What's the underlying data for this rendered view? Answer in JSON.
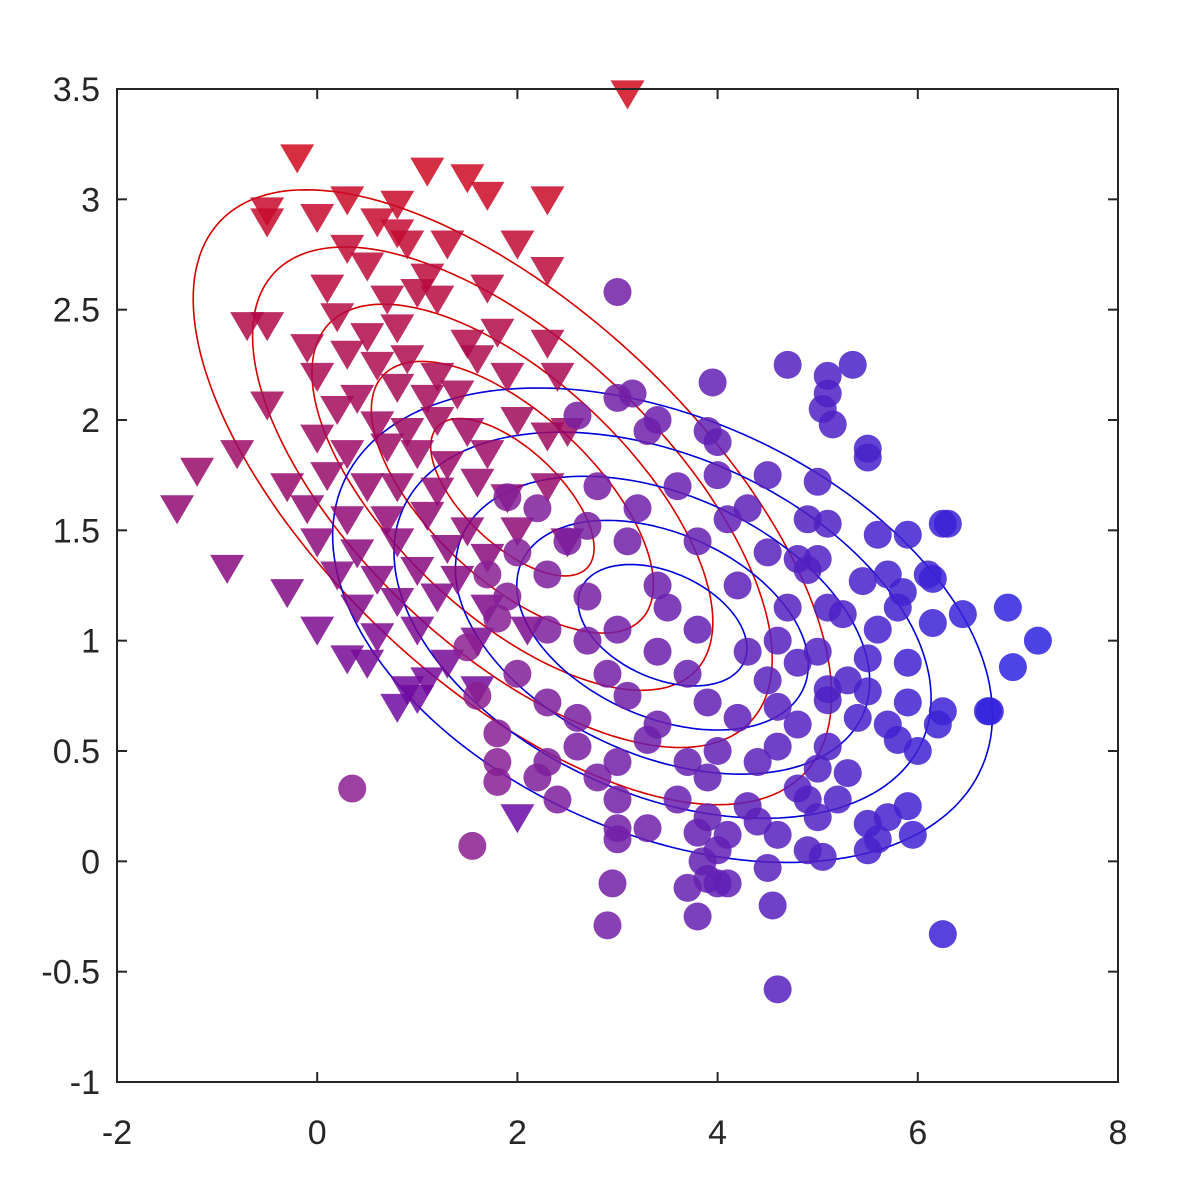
{
  "chart_data": {
    "type": "scatter",
    "title": "",
    "xlabel": "",
    "ylabel": "",
    "xlim": [
      -2,
      8
    ],
    "ylim": [
      -1,
      3.5
    ],
    "grid": false,
    "legend": "none",
    "x_ticks": [
      -2,
      0,
      2,
      4,
      6,
      8
    ],
    "x_tick_labels": [
      "-2",
      "0",
      "2",
      "4",
      "6",
      "8"
    ],
    "y_ticks": [
      -1,
      -0.5,
      0,
      0.5,
      1,
      1.5,
      2,
      2.5,
      3,
      3.5
    ],
    "y_tick_labels": [
      "-1",
      "-0.5",
      "0",
      "0.5",
      "1",
      "1.5",
      "2",
      "2.5",
      "3",
      "3.5"
    ],
    "colors": {
      "red": "#d10a1e",
      "blue": "#2e22e0",
      "contour_red": "#d40000",
      "contour_blue": "#0000d8",
      "axis": "#262626"
    },
    "series": [
      {
        "marker": "triangle-down",
        "color_scale": [
          "#d10a1e",
          "#6a0aa6"
        ],
        "points": [
          [
            3.1,
            3.48
          ],
          [
            -0.2,
            3.19
          ],
          [
            1.1,
            3.13
          ],
          [
            1.5,
            3.1
          ],
          [
            0.3,
            3.0
          ],
          [
            0.8,
            2.98
          ],
          [
            1.7,
            3.02
          ],
          [
            2.3,
            3.0
          ],
          [
            -0.5,
            2.95
          ],
          [
            -0.5,
            2.9
          ],
          [
            0.0,
            2.92
          ],
          [
            0.6,
            2.9
          ],
          [
            0.9,
            2.8
          ],
          [
            1.3,
            2.8
          ],
          [
            2.0,
            2.8
          ],
          [
            2.3,
            2.68
          ],
          [
            0.3,
            2.78
          ],
          [
            0.5,
            2.7
          ],
          [
            0.8,
            2.85
          ],
          [
            1.1,
            2.65
          ],
          [
            0.1,
            2.6
          ],
          [
            0.7,
            2.55
          ],
          [
            1.0,
            2.58
          ],
          [
            1.2,
            2.55
          ],
          [
            1.7,
            2.6
          ],
          [
            -0.7,
            2.43
          ],
          [
            -0.5,
            2.43
          ],
          [
            0.2,
            2.47
          ],
          [
            0.5,
            2.38
          ],
          [
            0.8,
            2.42
          ],
          [
            1.5,
            2.35
          ],
          [
            1.8,
            2.4
          ],
          [
            -0.1,
            2.33
          ],
          [
            0.3,
            2.3
          ],
          [
            0.6,
            2.25
          ],
          [
            0.9,
            2.28
          ],
          [
            1.2,
            2.2
          ],
          [
            1.6,
            2.28
          ],
          [
            2.3,
            2.35
          ],
          [
            0.0,
            2.2
          ],
          [
            0.4,
            2.1
          ],
          [
            0.8,
            2.15
          ],
          [
            1.1,
            2.1
          ],
          [
            1.4,
            2.12
          ],
          [
            1.9,
            2.2
          ],
          [
            2.4,
            2.2
          ],
          [
            -0.5,
            2.07
          ],
          [
            0.2,
            2.05
          ],
          [
            0.6,
            1.98
          ],
          [
            0.9,
            1.95
          ],
          [
            1.2,
            2.0
          ],
          [
            1.5,
            1.95
          ],
          [
            2.0,
            2.0
          ],
          [
            2.3,
            1.93
          ],
          [
            0.0,
            1.92
          ],
          [
            0.3,
            1.85
          ],
          [
            0.7,
            1.88
          ],
          [
            1.0,
            1.85
          ],
          [
            1.3,
            1.8
          ],
          [
            1.7,
            1.85
          ],
          [
            2.5,
            1.95
          ],
          [
            -0.8,
            1.85
          ],
          [
            -1.2,
            1.77
          ],
          [
            -0.3,
            1.7
          ],
          [
            0.1,
            1.75
          ],
          [
            0.5,
            1.7
          ],
          [
            0.8,
            1.7
          ],
          [
            1.2,
            1.68
          ],
          [
            1.6,
            1.72
          ],
          [
            1.9,
            1.65
          ],
          [
            2.3,
            1.7
          ],
          [
            -1.4,
            1.6
          ],
          [
            -0.1,
            1.6
          ],
          [
            0.3,
            1.55
          ],
          [
            0.7,
            1.55
          ],
          [
            1.1,
            1.57
          ],
          [
            1.5,
            1.5
          ],
          [
            2.0,
            1.5
          ],
          [
            0.0,
            1.45
          ],
          [
            0.4,
            1.4
          ],
          [
            0.8,
            1.45
          ],
          [
            1.3,
            1.42
          ],
          [
            1.7,
            1.38
          ],
          [
            2.5,
            1.45
          ],
          [
            -0.9,
            1.33
          ],
          [
            -0.3,
            1.22
          ],
          [
            0.2,
            1.3
          ],
          [
            0.6,
            1.28
          ],
          [
            1.0,
            1.32
          ],
          [
            1.4,
            1.28
          ],
          [
            0.4,
            1.15
          ],
          [
            0.8,
            1.18
          ],
          [
            1.2,
            1.2
          ],
          [
            1.7,
            1.15
          ],
          [
            0.0,
            1.05
          ],
          [
            0.6,
            1.02
          ],
          [
            1.0,
            1.05
          ],
          [
            1.6,
            1.0
          ],
          [
            2.1,
            1.05
          ],
          [
            0.3,
            0.92
          ],
          [
            0.5,
            0.9
          ],
          [
            1.3,
            0.9
          ],
          [
            1.1,
            0.82
          ],
          [
            0.9,
            0.78
          ],
          [
            1.6,
            0.78
          ],
          [
            1.0,
            0.74
          ],
          [
            0.8,
            0.7
          ],
          [
            2.0,
            0.2
          ]
        ]
      },
      {
        "marker": "circle",
        "color_scale": [
          "#8b1e90",
          "#2e22e0"
        ],
        "points": [
          [
            3.0,
            2.58
          ],
          [
            4.7,
            2.25
          ],
          [
            5.1,
            2.2
          ],
          [
            5.35,
            2.25
          ],
          [
            5.1,
            2.12
          ],
          [
            5.05,
            2.05
          ],
          [
            3.95,
            2.17
          ],
          [
            3.15,
            2.12
          ],
          [
            5.15,
            1.98
          ],
          [
            3.9,
            1.95
          ],
          [
            3.4,
            2.0
          ],
          [
            2.6,
            2.02
          ],
          [
            4.0,
            1.9
          ],
          [
            5.5,
            1.87
          ],
          [
            5.5,
            1.83
          ],
          [
            3.0,
            2.1
          ],
          [
            3.3,
            1.95
          ],
          [
            4.5,
            1.75
          ],
          [
            4.0,
            1.75
          ],
          [
            5.0,
            1.72
          ],
          [
            3.6,
            1.7
          ],
          [
            2.8,
            1.7
          ],
          [
            1.9,
            1.65
          ],
          [
            2.2,
            1.6
          ],
          [
            4.3,
            1.6
          ],
          [
            3.2,
            1.6
          ],
          [
            4.1,
            1.55
          ],
          [
            4.9,
            1.55
          ],
          [
            5.1,
            1.53
          ],
          [
            2.7,
            1.52
          ],
          [
            5.6,
            1.48
          ],
          [
            5.9,
            1.48
          ],
          [
            6.25,
            1.53
          ],
          [
            6.3,
            1.53
          ],
          [
            2.5,
            1.45
          ],
          [
            3.1,
            1.45
          ],
          [
            3.8,
            1.45
          ],
          [
            4.5,
            1.4
          ],
          [
            2.0,
            1.4
          ],
          [
            4.8,
            1.37
          ],
          [
            5.0,
            1.37
          ],
          [
            4.9,
            1.32
          ],
          [
            5.7,
            1.3
          ],
          [
            6.1,
            1.3
          ],
          [
            6.15,
            1.28
          ],
          [
            1.7,
            1.3
          ],
          [
            2.3,
            1.3
          ],
          [
            3.4,
            1.25
          ],
          [
            4.2,
            1.25
          ],
          [
            5.45,
            1.27
          ],
          [
            5.85,
            1.22
          ],
          [
            6.9,
            1.15
          ],
          [
            1.9,
            1.2
          ],
          [
            2.7,
            1.2
          ],
          [
            3.5,
            1.15
          ],
          [
            4.7,
            1.15
          ],
          [
            5.1,
            1.15
          ],
          [
            5.8,
            1.15
          ],
          [
            5.25,
            1.12
          ],
          [
            6.45,
            1.12
          ],
          [
            7.2,
            1.0
          ],
          [
            1.8,
            1.1
          ],
          [
            2.3,
            1.05
          ],
          [
            3.0,
            1.05
          ],
          [
            3.8,
            1.05
          ],
          [
            4.6,
            1.0
          ],
          [
            5.6,
            1.05
          ],
          [
            6.15,
            1.08
          ],
          [
            2.7,
            1.0
          ],
          [
            3.4,
            0.95
          ],
          [
            4.3,
            0.95
          ],
          [
            5.0,
            0.95
          ],
          [
            5.5,
            0.92
          ],
          [
            1.5,
            0.97
          ],
          [
            4.8,
            0.9
          ],
          [
            5.9,
            0.9
          ],
          [
            6.95,
            0.88
          ],
          [
            2.0,
            0.85
          ],
          [
            2.9,
            0.85
          ],
          [
            3.7,
            0.85
          ],
          [
            4.5,
            0.82
          ],
          [
            5.3,
            0.82
          ],
          [
            5.1,
            0.78
          ],
          [
            5.5,
            0.77
          ],
          [
            1.6,
            0.75
          ],
          [
            2.3,
            0.72
          ],
          [
            3.1,
            0.75
          ],
          [
            3.9,
            0.72
          ],
          [
            4.6,
            0.7
          ],
          [
            5.1,
            0.73
          ],
          [
            5.9,
            0.72
          ],
          [
            6.25,
            0.68
          ],
          [
            6.7,
            0.68
          ],
          [
            6.72,
            0.68
          ],
          [
            2.6,
            0.65
          ],
          [
            3.4,
            0.62
          ],
          [
            4.2,
            0.65
          ],
          [
            4.8,
            0.62
          ],
          [
            5.4,
            0.65
          ],
          [
            5.7,
            0.62
          ],
          [
            6.2,
            0.62
          ],
          [
            1.8,
            0.58
          ],
          [
            2.6,
            0.52
          ],
          [
            3.3,
            0.55
          ],
          [
            4.0,
            0.5
          ],
          [
            4.6,
            0.52
          ],
          [
            5.1,
            0.52
          ],
          [
            5.8,
            0.55
          ],
          [
            6.0,
            0.5
          ],
          [
            1.8,
            0.45
          ],
          [
            2.3,
            0.45
          ],
          [
            3.0,
            0.45
          ],
          [
            3.7,
            0.45
          ],
          [
            4.4,
            0.45
          ],
          [
            5.0,
            0.42
          ],
          [
            5.3,
            0.4
          ],
          [
            2.2,
            0.38
          ],
          [
            2.8,
            0.38
          ],
          [
            3.9,
            0.38
          ],
          [
            4.8,
            0.33
          ],
          [
            1.8,
            0.36
          ],
          [
            0.35,
            0.33
          ],
          [
            2.4,
            0.28
          ],
          [
            3.0,
            0.28
          ],
          [
            3.6,
            0.28
          ],
          [
            4.3,
            0.25
          ],
          [
            4.9,
            0.28
          ],
          [
            5.2,
            0.28
          ],
          [
            5.7,
            0.2
          ],
          [
            5.9,
            0.25
          ],
          [
            3.9,
            0.2
          ],
          [
            4.4,
            0.18
          ],
          [
            5.0,
            0.2
          ],
          [
            5.5,
            0.17
          ],
          [
            3.0,
            0.15
          ],
          [
            3.3,
            0.15
          ],
          [
            3.8,
            0.13
          ],
          [
            4.1,
            0.12
          ],
          [
            4.6,
            0.12
          ],
          [
            5.6,
            0.1
          ],
          [
            5.95,
            0.12
          ],
          [
            3.0,
            0.1
          ],
          [
            4.0,
            0.05
          ],
          [
            1.55,
            0.07
          ],
          [
            4.9,
            0.05
          ],
          [
            5.5,
            0.05
          ],
          [
            3.85,
            0.0
          ],
          [
            4.5,
            -0.03
          ],
          [
            5.05,
            0.02
          ],
          [
            3.9,
            -0.08
          ],
          [
            4.0,
            -0.1
          ],
          [
            3.7,
            -0.12
          ],
          [
            2.95,
            -0.1
          ],
          [
            4.1,
            -0.1
          ],
          [
            3.8,
            -0.25
          ],
          [
            2.9,
            -0.29
          ],
          [
            4.55,
            -0.2
          ],
          [
            6.25,
            -0.33
          ],
          [
            4.6,
            -0.58
          ]
        ]
      }
    ]
  }
}
